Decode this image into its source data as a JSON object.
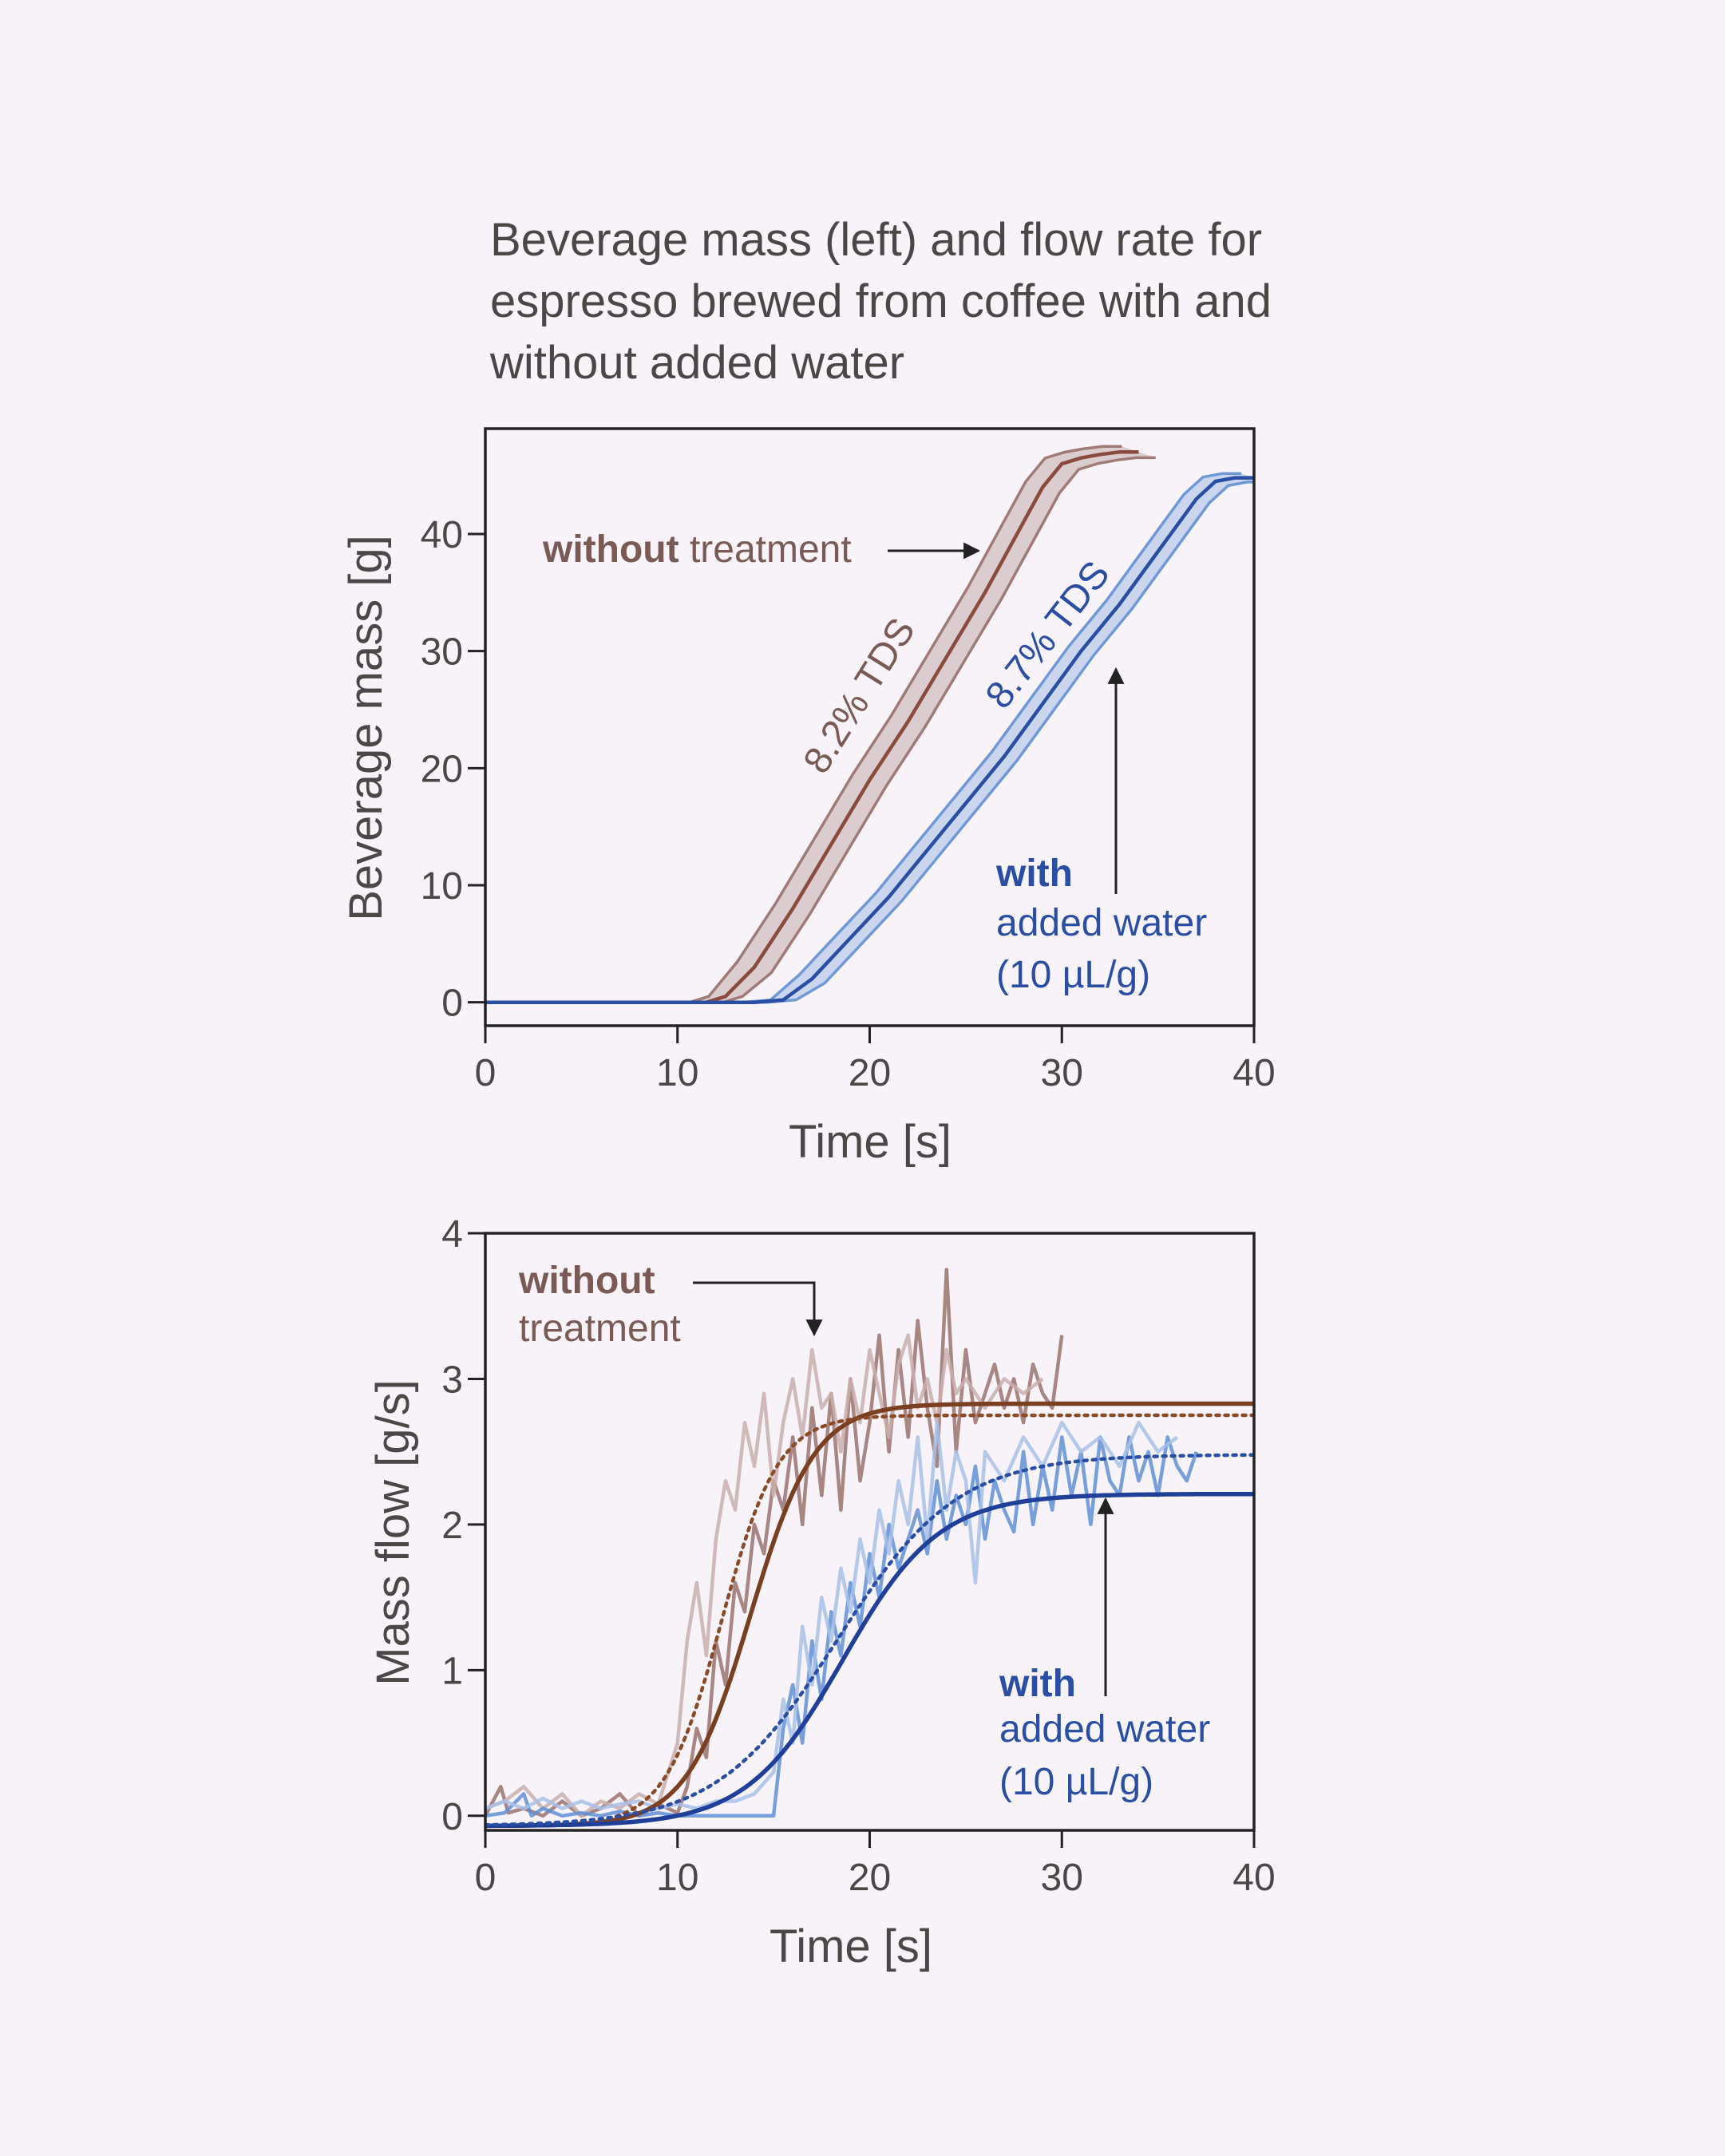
{
  "title_lines": [
    "Beverage mass (left) and flow rate for",
    "espresso brewed from coffee with and",
    "without added water"
  ],
  "colors": {
    "without": "#a07a76",
    "without_dark": "#7a3f2b",
    "without_fit": "#7a3f21",
    "with": "#2a4ea3",
    "with_light": "#6f98d6",
    "axis": "#222222",
    "text": "#4a4747"
  },
  "chart_data": [
    {
      "type": "line",
      "xlabel": "Time [s]",
      "ylabel": "Beverage mass [g]",
      "xlim": [
        0,
        40
      ],
      "ylim": [
        -2,
        49
      ],
      "xticks": [
        0,
        10,
        20,
        30,
        40
      ],
      "yticks": [
        0,
        10,
        20,
        30,
        40
      ],
      "series": [
        {
          "name": "without treatment",
          "band_halfwidth": 1.6,
          "x": [
            0,
            5,
            10,
            11.5,
            12.5,
            14,
            16,
            18,
            20,
            22,
            24,
            26,
            28,
            29,
            30,
            31,
            32,
            33,
            34
          ],
          "y": [
            0,
            0,
            0,
            0,
            0.5,
            3,
            8,
            13.5,
            19,
            24,
            29.5,
            35,
            41,
            44,
            46,
            46.5,
            46.8,
            47,
            47
          ]
        },
        {
          "name": "with added water (10 µL/g)",
          "band_halfwidth": 1.2,
          "x": [
            0,
            5,
            10,
            14,
            15.5,
            17,
            19,
            21,
            23,
            25,
            27,
            29,
            31,
            33,
            35,
            37,
            38,
            39,
            40
          ],
          "y": [
            0,
            0,
            0,
            0,
            0.2,
            2,
            5.5,
            9,
            13,
            17,
            21,
            25.5,
            30,
            34,
            38.5,
            43,
            44.5,
            44.8,
            44.8
          ]
        }
      ],
      "annotations": [
        {
          "text": "8.2% TDS",
          "series": "without treatment"
        },
        {
          "text": "8.7% TDS",
          "series": "with added water (10 µL/g)"
        },
        {
          "text_bold": "without",
          "text": " treatment"
        },
        {
          "text_bold": "with",
          "lines": [
            "added water",
            "(10 µL/g)"
          ]
        }
      ]
    },
    {
      "type": "line",
      "xlabel": "Time [s]",
      "ylabel": "Mass flow [g/s]",
      "xlim": [
        0,
        40
      ],
      "ylim": [
        -0.1,
        4
      ],
      "xticks": [
        0,
        10,
        20,
        30,
        40
      ],
      "yticks": [
        0,
        1,
        2,
        3,
        4
      ],
      "series": [
        {
          "name": "without treatment (raw, trial 1)",
          "x": [
            0,
            0.8,
            1.2,
            2,
            3,
            4,
            5,
            6,
            7,
            8,
            9,
            10,
            10.5,
            11,
            11.5,
            12,
            12.5,
            13,
            13.5,
            14,
            14.5,
            15,
            15.5,
            16,
            16.5,
            17,
            17.5,
            18,
            18.5,
            19,
            19.5,
            20,
            20.5,
            21,
            21.5,
            22,
            22.5,
            23,
            23.5,
            24,
            24.5,
            25,
            25.5,
            26,
            26.5,
            27,
            27.5,
            28,
            28.5,
            29,
            29.5,
            30
          ],
          "y": [
            0,
            0.2,
            0.02,
            0.05,
            0,
            0.1,
            0,
            0.05,
            0.15,
            0,
            0.08,
            0.02,
            0.2,
            0.6,
            0.4,
            1.2,
            0.9,
            1.6,
            1.4,
            2.0,
            1.8,
            2.3,
            2.1,
            2.6,
            2.0,
            2.8,
            2.2,
            2.9,
            2.1,
            3.0,
            2.3,
            2.7,
            3.3,
            2.5,
            3.2,
            2.6,
            3.4,
            2.8,
            2.4,
            3.75,
            2.5,
            3.2,
            2.7,
            2.9,
            3.1,
            2.8,
            3.0,
            2.7,
            3.1,
            2.9,
            2.8,
            3.3
          ]
        },
        {
          "name": "without treatment (raw, trial 2)",
          "x": [
            0,
            1,
            2,
            3,
            4,
            5,
            6,
            7,
            8,
            9,
            10,
            10.5,
            11,
            11.5,
            12,
            12.5,
            13,
            13.5,
            14,
            14.5,
            15,
            15.5,
            16,
            16.5,
            17,
            17.5,
            18,
            18.5,
            19,
            19.5,
            20,
            20.5,
            21,
            21.5,
            22,
            22.5,
            23,
            23.5,
            24,
            24.5,
            25,
            26,
            27,
            28,
            29
          ],
          "y": [
            0.05,
            0.1,
            0.2,
            0.05,
            0.15,
            0,
            0.1,
            0.05,
            0.15,
            0.08,
            0.5,
            1.2,
            1.6,
            1.1,
            1.9,
            2.3,
            2.1,
            2.7,
            2.4,
            2.9,
            2.2,
            2.7,
            3.0,
            2.6,
            3.2,
            2.8,
            2.9,
            2.5,
            3.0,
            2.7,
            3.2,
            2.9,
            2.6,
            3.1,
            3.3,
            2.8,
            3.0,
            2.7,
            3.2,
            2.9,
            3.0,
            2.8,
            3.0,
            2.9,
            3.0
          ]
        },
        {
          "name": "with added water (raw, trial 1)",
          "x": [
            0,
            1,
            2,
            2.4,
            3,
            4,
            5,
            6,
            7,
            8,
            9,
            10,
            11,
            12,
            13,
            14,
            15,
            15.5,
            16,
            16.5,
            17,
            17.5,
            18,
            18.5,
            19,
            19.5,
            20,
            20.5,
            21,
            21.5,
            22,
            22.5,
            23,
            23.5,
            24,
            24.5,
            25,
            25.5,
            26,
            26.5,
            27,
            27.5,
            28,
            28.5,
            29,
            29.5,
            30,
            30.5,
            31,
            31.5,
            32,
            32.5,
            33,
            33.5,
            34,
            34.5,
            35,
            35.5,
            36,
            36.5,
            37
          ],
          "y": [
            0,
            0.02,
            0.15,
            0,
            0.05,
            0,
            0.02,
            0,
            0.03,
            0,
            0.02,
            0,
            0,
            0,
            0,
            0,
            0,
            0.6,
            0.9,
            0.5,
            1.2,
            0.8,
            1.4,
            1.1,
            1.6,
            1.3,
            1.8,
            1.5,
            2.0,
            1.7,
            1.9,
            2.1,
            1.8,
            2.3,
            1.9,
            2.2,
            2.0,
            2.4,
            1.9,
            2.3,
            2.1,
            1.95,
            2.5,
            2.0,
            2.4,
            2.1,
            2.6,
            2.2,
            2.5,
            2.0,
            2.6,
            2.3,
            2.2,
            2.6,
            2.3,
            2.5,
            2.2,
            2.6,
            2.4,
            2.3,
            2.5
          ]
        },
        {
          "name": "with added water (raw, trial 2)",
          "x": [
            0,
            1,
            2,
            3,
            4,
            5,
            6,
            7,
            8,
            9,
            10,
            11,
            12,
            13,
            14,
            15,
            15.5,
            16,
            16.5,
            17,
            17.5,
            18,
            18.5,
            19,
            19.5,
            20,
            20.5,
            21,
            21.5,
            22,
            22.5,
            23,
            23.5,
            24,
            24.5,
            25,
            25.5,
            26,
            27,
            28,
            29,
            30,
            31,
            32,
            33,
            34,
            35,
            36
          ],
          "y": [
            0.05,
            0.1,
            0.05,
            0.12,
            0.05,
            0.1,
            0.05,
            0.08,
            0.1,
            0.05,
            0.08,
            0.05,
            0.1,
            0.1,
            0.15,
            0.3,
            0.8,
            0.5,
            1.3,
            0.9,
            1.5,
            1.2,
            1.7,
            1.4,
            1.9,
            1.6,
            2.1,
            1.8,
            2.3,
            2.0,
            2.6,
            1.9,
            2.7,
            2.1,
            2.5,
            2.3,
            1.6,
            2.5,
            2.3,
            2.6,
            2.4,
            2.7,
            2.5,
            2.6,
            2.4,
            2.7,
            2.5,
            2.6
          ]
        },
        {
          "name": "without treatment (fit, solid)",
          "fit": "logistic",
          "a": 2.9,
          "x0": 13.8,
          "k": 0.6,
          "base": -0.07
        },
        {
          "name": "without treatment (fit, dotted)",
          "fit": "logistic",
          "a": 2.82,
          "x0": 12.3,
          "k": 0.68,
          "base": -0.07
        },
        {
          "name": "with added water (fit, solid)",
          "fit": "logistic",
          "a": 2.28,
          "x0": 18.6,
          "k": 0.4,
          "base": -0.07
        },
        {
          "name": "with added water (fit, dotted)",
          "fit": "logistic",
          "a": 2.55,
          "x0": 18.3,
          "k": 0.32,
          "base": -0.07
        }
      ],
      "annotations": [
        {
          "text_bold": "without",
          "lines": [
            "treatment"
          ]
        },
        {
          "text_bold": "with",
          "lines": [
            "added water",
            "(10 µL/g)"
          ]
        }
      ]
    }
  ]
}
